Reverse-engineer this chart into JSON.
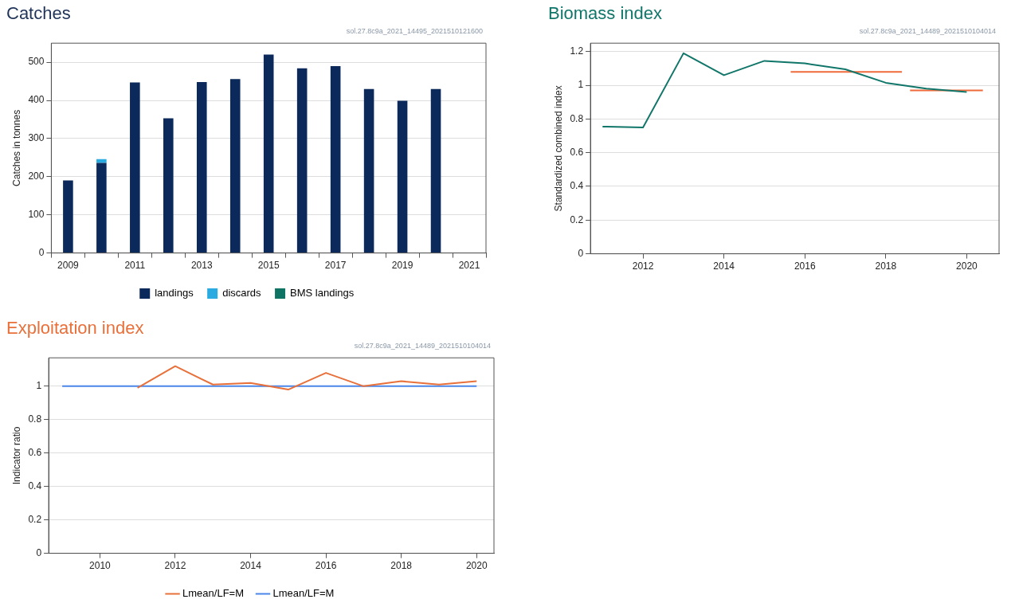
{
  "chart_data": [
    {
      "type": "bar",
      "title": "Catches",
      "ylabel": "Catches in tonnes",
      "stacked": true,
      "grid": "y",
      "legend": "bottom",
      "annotations": [
        "sol.27.8c9a_2021_14495_2021510121600"
      ],
      "categories": [
        "2009",
        null,
        "2011",
        null,
        "2013",
        null,
        "2015",
        null,
        "2017",
        null,
        "2019",
        null,
        "2021"
      ],
      "series": [
        {
          "name": "landings",
          "color": "#0b2a5b",
          "values": [
            190,
            236,
            447,
            353,
            448,
            456,
            520,
            484,
            490,
            430,
            399,
            430,
            null
          ]
        },
        {
          "name": "discards",
          "color": "#29abe2",
          "values": [
            null,
            10,
            null,
            null,
            null,
            null,
            null,
            null,
            null,
            null,
            null,
            null,
            null
          ]
        },
        {
          "name": "BMS landings",
          "color": "#0e7363",
          "values": [
            null,
            null,
            null,
            null,
            null,
            null,
            null,
            null,
            null,
            null,
            null,
            null,
            null
          ]
        }
      ],
      "ylim": [
        0,
        550
      ],
      "yticks": [
        0,
        100,
        200,
        300,
        400,
        500
      ]
    },
    {
      "type": "line",
      "title": "Biomass index",
      "ylabel": "Standardized combined index",
      "grid": "y",
      "annotations": [
        "sol.27.8c9a_2021_14489_2021510104014"
      ],
      "series": [
        {
          "color": "#11766a",
          "x": [
            2011,
            2012,
            2013,
            2014,
            2015,
            2016,
            2017,
            2018,
            2019,
            2020
          ],
          "values": [
            0.755,
            0.75,
            1.19,
            1.06,
            1.145,
            1.13,
            1.095,
            1.015,
            0.98,
            0.96
          ]
        },
        {
          "color": "#ef6a3a",
          "x": [
            2015.65,
            2018.4
          ],
          "values": [
            1.08,
            1.08
          ]
        },
        {
          "color": "#ef6a3a",
          "x": [
            2018.6,
            2020.4
          ],
          "values": [
            0.97,
            0.97
          ]
        }
      ],
      "xlim": [
        2010.7,
        2020.8
      ],
      "xticks": [
        2012,
        2014,
        2016,
        2018,
        2020
      ],
      "ylim": [
        0,
        1.25
      ],
      "yticks": [
        0,
        {
          "value": 0.2,
          "label": "0.2"
        },
        {
          "value": 0.4,
          "label": "0.4"
        },
        {
          "value": 0.6,
          "label": "0.6"
        },
        {
          "value": 0.8,
          "label": "0.8"
        },
        1,
        {
          "value": 1.2,
          "label": "1.2"
        }
      ]
    },
    {
      "type": "line",
      "title": "Exploitation index",
      "ylabel": "Indicator ratio",
      "grid": "y",
      "legend": "bottom",
      "annotations": [
        "sol.27.8c9a_2021_14489_2021510104014"
      ],
      "series": [
        {
          "name": "Lmean/LF=M",
          "color": "#e8703a",
          "x": [
            2011,
            2012,
            2013,
            2014,
            2015,
            2016,
            2017,
            2018,
            2019,
            2020
          ],
          "values": [
            0.99,
            1.12,
            1.01,
            1.02,
            0.98,
            1.08,
            1.0,
            1.03,
            1.01,
            1.03
          ]
        },
        {
          "name": "Lmean/LF=M",
          "color": "#4a86e8",
          "x": [
            2009,
            2010,
            2011,
            2012,
            2013,
            2014,
            2015,
            2016,
            2017,
            2018,
            2019,
            2020
          ],
          "values": [
            1,
            1,
            1,
            1,
            1,
            1,
            1,
            1,
            1,
            1,
            1,
            1
          ]
        }
      ],
      "xlim": [
        2008.64,
        2020.46
      ],
      "xticks": [
        2010,
        2012,
        2014,
        2016,
        2018,
        2020
      ],
      "ylim": [
        0,
        1.17
      ],
      "yticks": [
        0,
        {
          "value": 0.2,
          "label": "0.2"
        },
        {
          "value": 0.4,
          "label": "0.4"
        },
        {
          "value": 0.6,
          "label": "0.6"
        },
        {
          "value": 0.8,
          "label": "0.8"
        },
        1
      ]
    }
  ]
}
